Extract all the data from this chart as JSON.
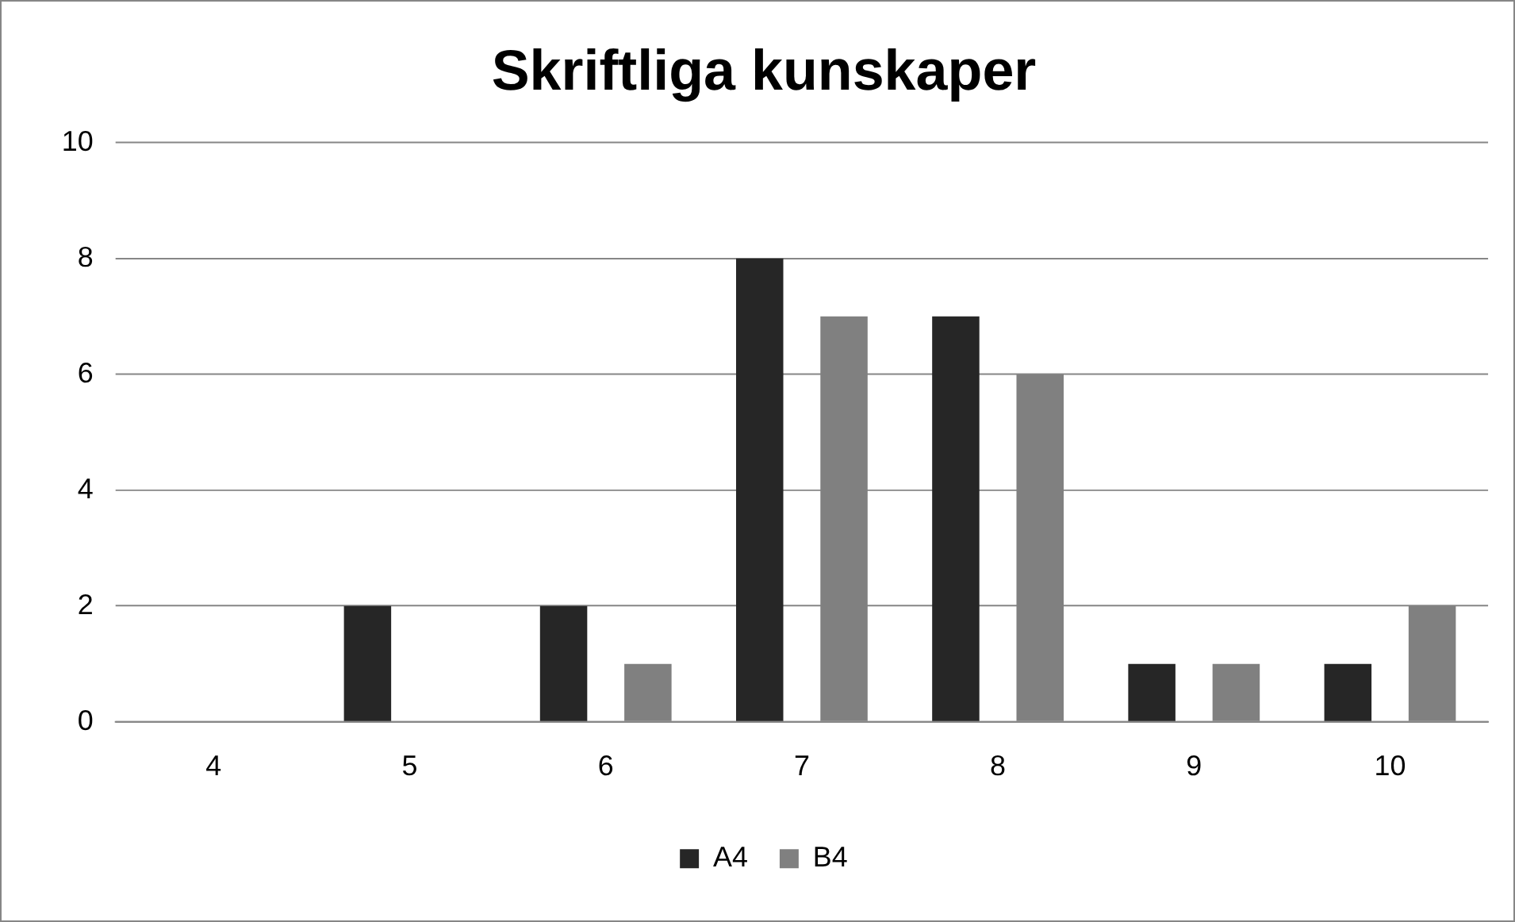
{
  "chart_data": {
    "type": "bar",
    "title": "Skriftliga kunskaper",
    "categories": [
      "4",
      "5",
      "6",
      "7",
      "8",
      "9",
      "10"
    ],
    "series": [
      {
        "name": "A4",
        "color": "#262626",
        "values": [
          0,
          2,
          2,
          8,
          7,
          1,
          1
        ]
      },
      {
        "name": "B4",
        "color": "#808080",
        "values": [
          0,
          0,
          1,
          7,
          6,
          1,
          2
        ]
      }
    ],
    "ylim": [
      0,
      10
    ],
    "yticks": [
      0,
      2,
      4,
      6,
      8,
      10
    ],
    "grid": "y",
    "legend": "bottom"
  }
}
